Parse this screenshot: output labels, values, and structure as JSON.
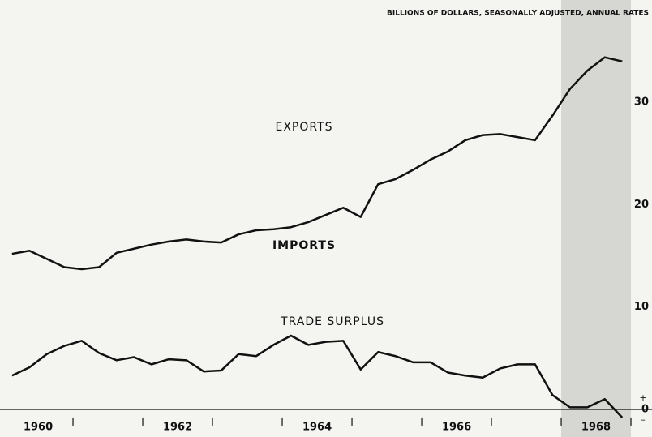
{
  "chart_data": {
    "type": "line",
    "title": "BILLIONS OF DOLLARS, SEASONALLY ADJUSTED, ANNUAL RATES",
    "annotations": [
      "EXPORTS",
      "IMPORTS",
      "TRADE SURPLUS"
    ],
    "x": [
      1960.125,
      1960.375,
      1960.625,
      1960.875,
      1961.125,
      1961.375,
      1961.625,
      1961.875,
      1962.125,
      1962.375,
      1962.625,
      1962.875,
      1963.125,
      1963.375,
      1963.625,
      1963.875,
      1964.125,
      1964.375,
      1964.625,
      1964.875,
      1965.125,
      1965.375,
      1965.625,
      1965.875,
      1966.125,
      1966.375,
      1966.625,
      1966.875,
      1967.125,
      1967.375,
      1967.625,
      1967.875,
      1968.125,
      1968.375,
      1968.625,
      1968.875
    ],
    "series": [
      {
        "name": "IMPORTS",
        "color": "#111111",
        "values": [
          15.2,
          15.5,
          14.7,
          13.9,
          13.7,
          13.9,
          15.3,
          15.7,
          16.1,
          16.4,
          16.6,
          16.4,
          16.3,
          17.1,
          17.5,
          17.6,
          17.8,
          18.3,
          19.0,
          19.7,
          18.8,
          22.0,
          22.5,
          23.4,
          24.4,
          25.2,
          26.3,
          26.8,
          26.9,
          26.6,
          26.3,
          28.7,
          31.3,
          33.1,
          34.4,
          34.0
        ]
      },
      {
        "name": "TRADE SURPLUS",
        "color": "#111111",
        "values": [
          3.3,
          4.1,
          5.4,
          6.2,
          6.7,
          5.5,
          4.8,
          5.1,
          4.4,
          4.9,
          4.8,
          3.7,
          3.8,
          5.4,
          5.2,
          6.3,
          7.2,
          6.3,
          6.6,
          6.7,
          3.9,
          5.6,
          5.2,
          4.6,
          4.6,
          3.6,
          3.3,
          3.1,
          4.0,
          4.4,
          4.4,
          1.4,
          0.2,
          0.2,
          1.0,
          -0.8
        ]
      }
    ],
    "xlim": [
      1959.953,
      1969.302
    ],
    "xticks": [
      1961,
      1962,
      1963,
      1964,
      1965,
      1966,
      1967,
      1968,
      1969
    ],
    "year_labels": [
      {
        "value": 1960.5,
        "label": "1960"
      },
      {
        "value": 1962.5,
        "label": "1962"
      },
      {
        "value": 1964.5,
        "label": "1964"
      },
      {
        "value": 1966.5,
        "label": "1966"
      },
      {
        "value": 1968.5,
        "label": "1968"
      }
    ],
    "ylim": [
      -2.7,
      40
    ],
    "yticks": [
      10,
      20,
      30,
      {
        "value": 0,
        "label": "0"
      }
    ],
    "sign_labels": [
      "+",
      "–"
    ],
    "shaded": [
      1968,
      1969
    ]
  }
}
